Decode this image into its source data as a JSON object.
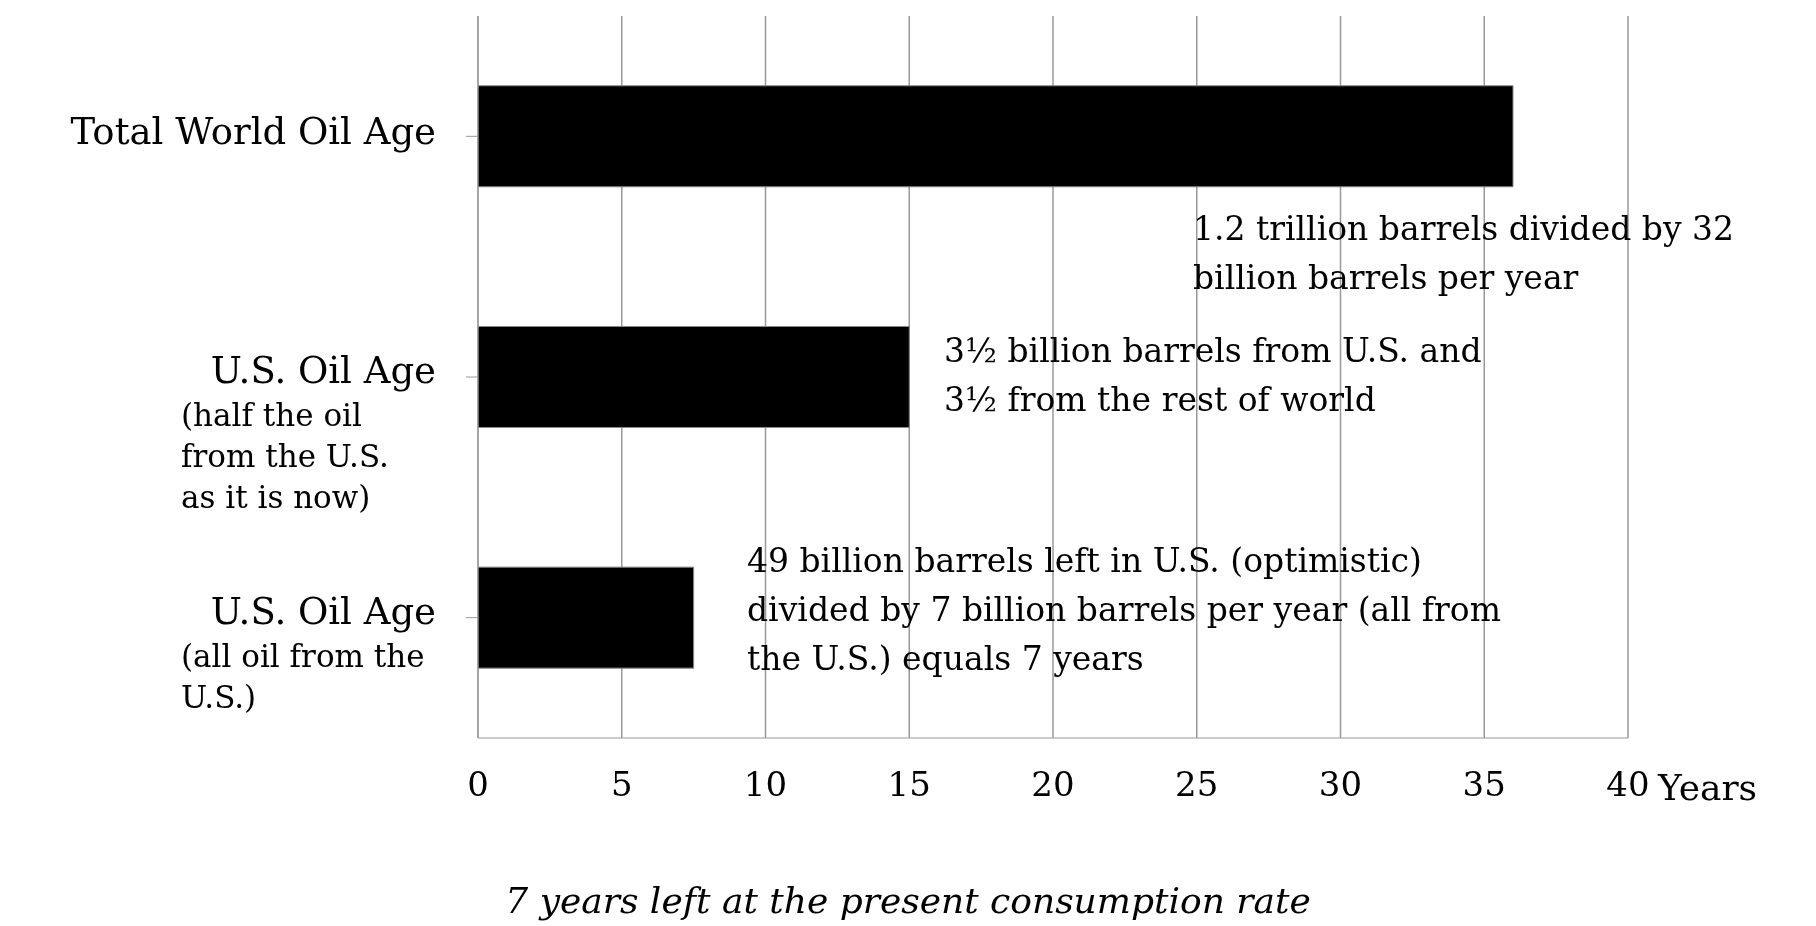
{
  "chart_data": {
    "type": "bar",
    "orientation": "horizontal",
    "categories": [
      "Total World Oil Age",
      "U.S. Oil Age (half the oil from the U.S. as it is now)",
      "U.S. Oil Age (all oil from the U.S.)"
    ],
    "values": [
      36,
      15,
      7.5
    ],
    "color": "#000000",
    "xlim": [
      0,
      40
    ],
    "xticks": [
      0,
      5,
      10,
      15,
      20,
      25,
      30,
      35,
      40
    ],
    "xlabel": "Years",
    "grid": "x",
    "annotations": [
      "1.2 trillion barrels divided by 32 billion barrels per year",
      "3½ billion barrels from U.S. and 3½ from the rest of world",
      "49 billion barrels left in U.S. (optimistic) divided by 7 billion barrels per year (all from the U.S.) equals 7 years",
      "7 years left at the present consumption rate"
    ]
  }
}
